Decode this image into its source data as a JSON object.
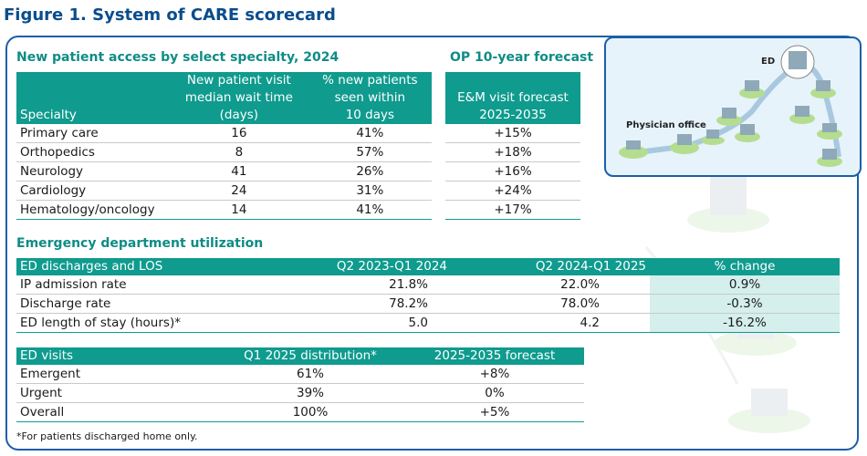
{
  "figure_title": "Figure 1. System of CARE scorecard",
  "access": {
    "title": "New patient access by select specialty, 2024",
    "headers": {
      "specialty": "Specialty",
      "wait_1": "New patient visit",
      "wait_2": "median wait time",
      "wait_3": "(days)",
      "pct_1": "% new patients",
      "pct_2": "seen within",
      "pct_3": "10 days"
    },
    "rows": [
      {
        "specialty": "Primary care",
        "wait": "16",
        "pct": "41%"
      },
      {
        "specialty": "Orthopedics",
        "wait": "8",
        "pct": "57%"
      },
      {
        "specialty": "Neurology",
        "wait": "41",
        "pct": "26%"
      },
      {
        "specialty": "Cardiology",
        "wait": "24",
        "pct": "31%"
      },
      {
        "specialty": "Hematology/oncology",
        "wait": "14",
        "pct": "41%"
      }
    ]
  },
  "forecast": {
    "title": "OP 10-year forecast",
    "header_1": "E&M visit forecast",
    "header_2": "2025-2035",
    "values": [
      "+15%",
      "+18%",
      "+16%",
      "+24%",
      "+17%"
    ]
  },
  "map": {
    "ed_label": "ED",
    "physician_label": "Physician office"
  },
  "ed_util": {
    "title": "Emergency department utilization",
    "headers": [
      "ED discharges and LOS",
      "Q2 2023-Q1 2024",
      "Q2 2024-Q1 2025",
      "% change"
    ],
    "rows": [
      {
        "label": "IP admission rate",
        "a": "21.8%",
        "b": "22.0%",
        "change": "0.9%"
      },
      {
        "label": "Discharge rate",
        "a": "78.2%",
        "b": "78.0%",
        "change": "-0.3%"
      },
      {
        "label": "ED length of stay (hours)*",
        "a": "5.0",
        "b": "4.2",
        "change": "-16.2%"
      }
    ]
  },
  "ed_visits": {
    "headers": [
      "ED visits",
      "Q1 2025 distribution*",
      "2025-2035 forecast"
    ],
    "rows": [
      {
        "label": "Emergent",
        "dist": "61%",
        "fc": "+8%"
      },
      {
        "label": "Urgent",
        "dist": "39%",
        "fc": "0%"
      },
      {
        "label": "Overall",
        "dist": "100%",
        "fc": "+5%"
      }
    ]
  },
  "footnote": "*For patients discharged home only.",
  "colors": {
    "teal": "#0f9b8e",
    "blue": "#1a5fa8",
    "highlight": "#d4efec"
  }
}
